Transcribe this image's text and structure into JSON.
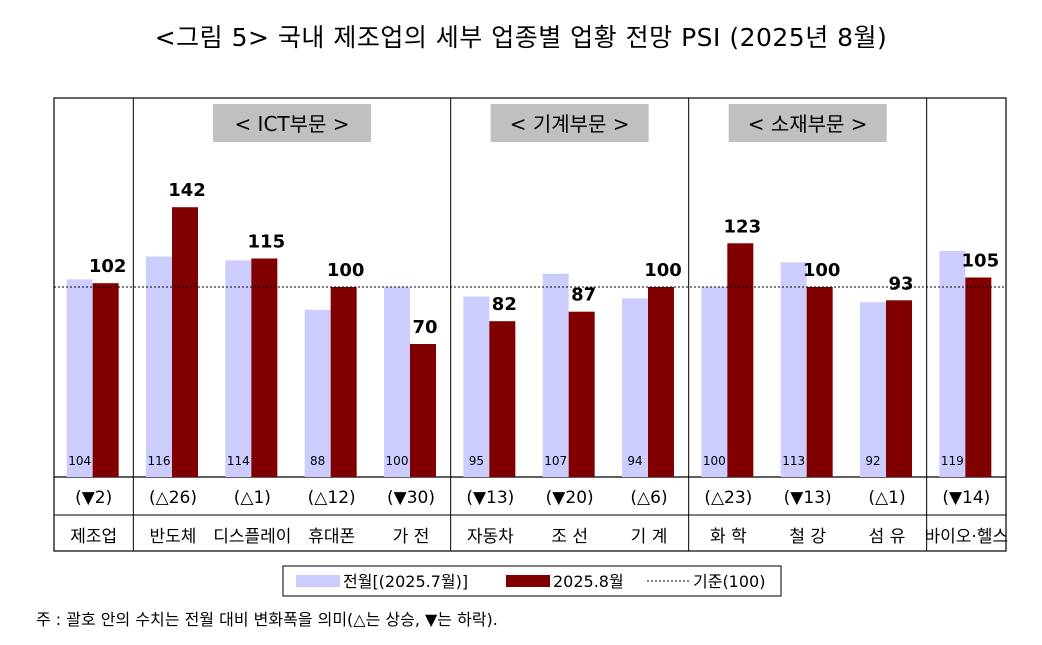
{
  "title": "<그림 5> 국내 제조업의 세부 업종별 업황 전망 PSI (2025년 8월)",
  "chart_data": {
    "type": "bar",
    "baseline_value": 100,
    "categories": [
      "제조업",
      "반도체",
      "디스플레이",
      "휴대폰",
      "가 전",
      "자동차",
      "조 선",
      "기 계",
      "화 학",
      "철 강",
      "섬 유",
      "바이오·헬스"
    ],
    "series": [
      {
        "name": "전월[(2025.7월)]",
        "color": "#ccccff",
        "values": [
          104,
          116,
          114,
          88,
          100,
          95,
          107,
          94,
          100,
          113,
          92,
          119
        ]
      },
      {
        "name": "2025.8월",
        "color": "#800000",
        "values": [
          102,
          142,
          115,
          100,
          70,
          82,
          87,
          100,
          123,
          100,
          93,
          105
        ]
      }
    ],
    "changes": [
      "(▼2)",
      "(△26)",
      "(△1)",
      "(△12)",
      "(▼30)",
      "(▼13)",
      "(▼20)",
      "(△6)",
      "(△23)",
      "(▼13)",
      "(△1)",
      "(▼14)"
    ],
    "groups": [
      {
        "label": "< ICT부문 >"
      },
      {
        "label": "< 기계부문 >"
      },
      {
        "label": "< 소재부문 >"
      }
    ],
    "legend": {
      "baseline_label": "기준(100)",
      "position": "bottom"
    },
    "grid": false
  },
  "note": "주 : 괄호 안의 수치는 전월 대비 변화폭을 의미(△는 상승, ▼는 하락)."
}
